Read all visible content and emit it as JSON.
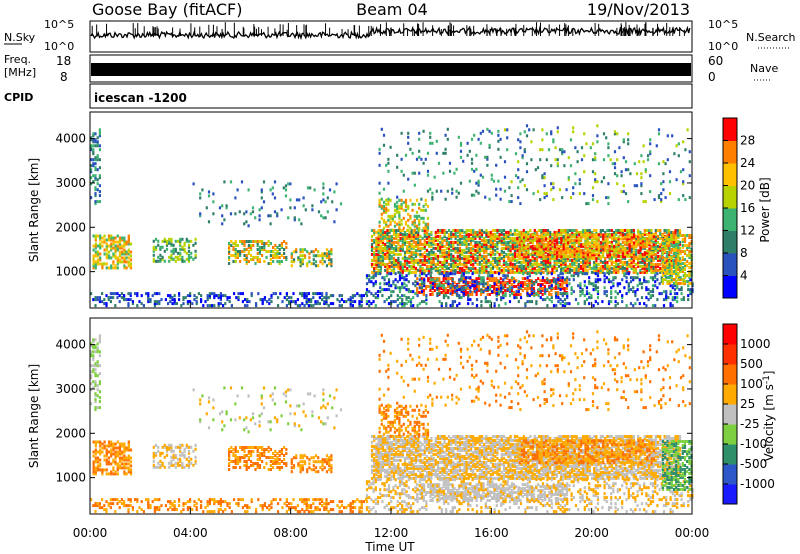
{
  "header": {
    "station": "Goose Bay (fitACF)",
    "beam": "Beam 04",
    "date": "19/Nov/2013"
  },
  "nsky_panel": {
    "left_label": "N.Sky",
    "right_label": "N.Search",
    "ticks_left": [
      {
        "base": "10",
        "exp": "^5"
      },
      {
        "base": "10",
        "exp": "^0"
      }
    ],
    "ticks_right": [
      {
        "base": "10",
        "exp": "^5"
      },
      {
        "base": "10",
        "exp": "^0"
      }
    ]
  },
  "freq_panel": {
    "left_label_1": "Freq.",
    "left_label_2": "[MHz]",
    "ticks_left": [
      "18",
      "8"
    ],
    "right_label": "Nave",
    "ticks_right": [
      "60",
      "0"
    ]
  },
  "cpid_panel": {
    "left_label": "CPID",
    "text": "icescan -1200"
  },
  "chart_data": [
    {
      "type": "heatmap",
      "name": "power",
      "ylabel": "Slant Range [km]",
      "ylim": [
        180,
        4600
      ],
      "yticks": [
        "1000",
        "2000",
        "3000",
        "4000"
      ],
      "colorbar_label": "Power [dB]",
      "colorbar_ticks": [
        "4",
        "8",
        "12",
        "16",
        "20",
        "24",
        "28"
      ],
      "colorbar_range": [
        0,
        32
      ],
      "colorbar_colors": [
        "#0000ff",
        "#2a52be",
        "#2f7e6a",
        "#3cb371",
        "#b8d200",
        "#ffc000",
        "#ff8000",
        "#ff0000"
      ]
    },
    {
      "type": "heatmap",
      "name": "velocity",
      "ylabel": "Slant Range [km]",
      "ylim": [
        180,
        4600
      ],
      "yticks": [
        "1000",
        "2000",
        "3000",
        "4000"
      ],
      "colorbar_label": "Velocity [m s",
      "colorbar_label_sup": "-1",
      "colorbar_label_end": "]",
      "colorbar_ticks": [
        "1000",
        "500",
        "100",
        "25",
        "-25",
        "-100",
        "-500",
        "-1000"
      ],
      "colorbar_colors": [
        "#1a1aff",
        "#2d57c8",
        "#2f8f6a",
        "#7fd040",
        "#c0c0c0",
        "#ffaa00",
        "#ff7000",
        "#ff3000",
        "#ff0000"
      ]
    }
  ],
  "time_axis": {
    "label": "Time UT",
    "ticks": [
      "00:00",
      "04:00",
      "08:00",
      "12:00",
      "16:00",
      "20:00",
      "00:00"
    ]
  }
}
